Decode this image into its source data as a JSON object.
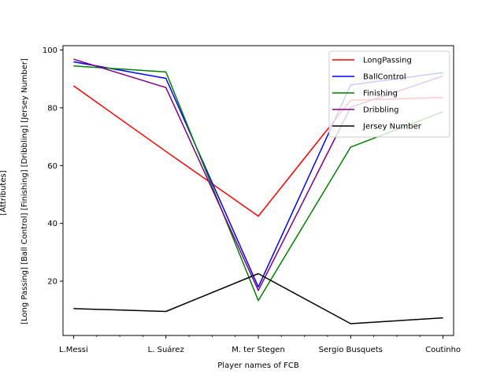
{
  "chart_data": {
    "type": "line",
    "xlabel": "Player names of FCB",
    "ylabel": "[Long Passing] [Ball Control] [Finishing] [Dribbling] [Jersey Number]",
    "ylabel_tail": "[Attributes]",
    "categories": [
      "L.Messi",
      "L. Suárez",
      "M. ter Stegen",
      "Sergio Busquets",
      "Coutinho"
    ],
    "yticks": [
      20,
      40,
      60,
      80,
      100
    ],
    "ylim": [
      1.2,
      101.5
    ],
    "grid": false,
    "legend_position": "top-right",
    "series": [
      {
        "name": "LongPassing",
        "color": "#ff0000",
        "values": [
          87.6,
          64.9,
          42.5,
          82.6,
          83.6
        ]
      },
      {
        "name": "BallControl",
        "color": "#0000ff",
        "values": [
          95.9,
          90.2,
          18.0,
          87.9,
          92.2
        ]
      },
      {
        "name": "Finishing",
        "color": "#008000",
        "values": [
          94.5,
          92.4,
          13.3,
          66.4,
          78.6
        ]
      },
      {
        "name": "Dribbling",
        "color": "#800080",
        "values": [
          96.8,
          87.0,
          16.8,
          80.2,
          91.0
        ]
      },
      {
        "name": "Jersey Number",
        "color": "#000000",
        "values": [
          10.5,
          9.5,
          22.6,
          5.3,
          7.3
        ]
      }
    ]
  }
}
